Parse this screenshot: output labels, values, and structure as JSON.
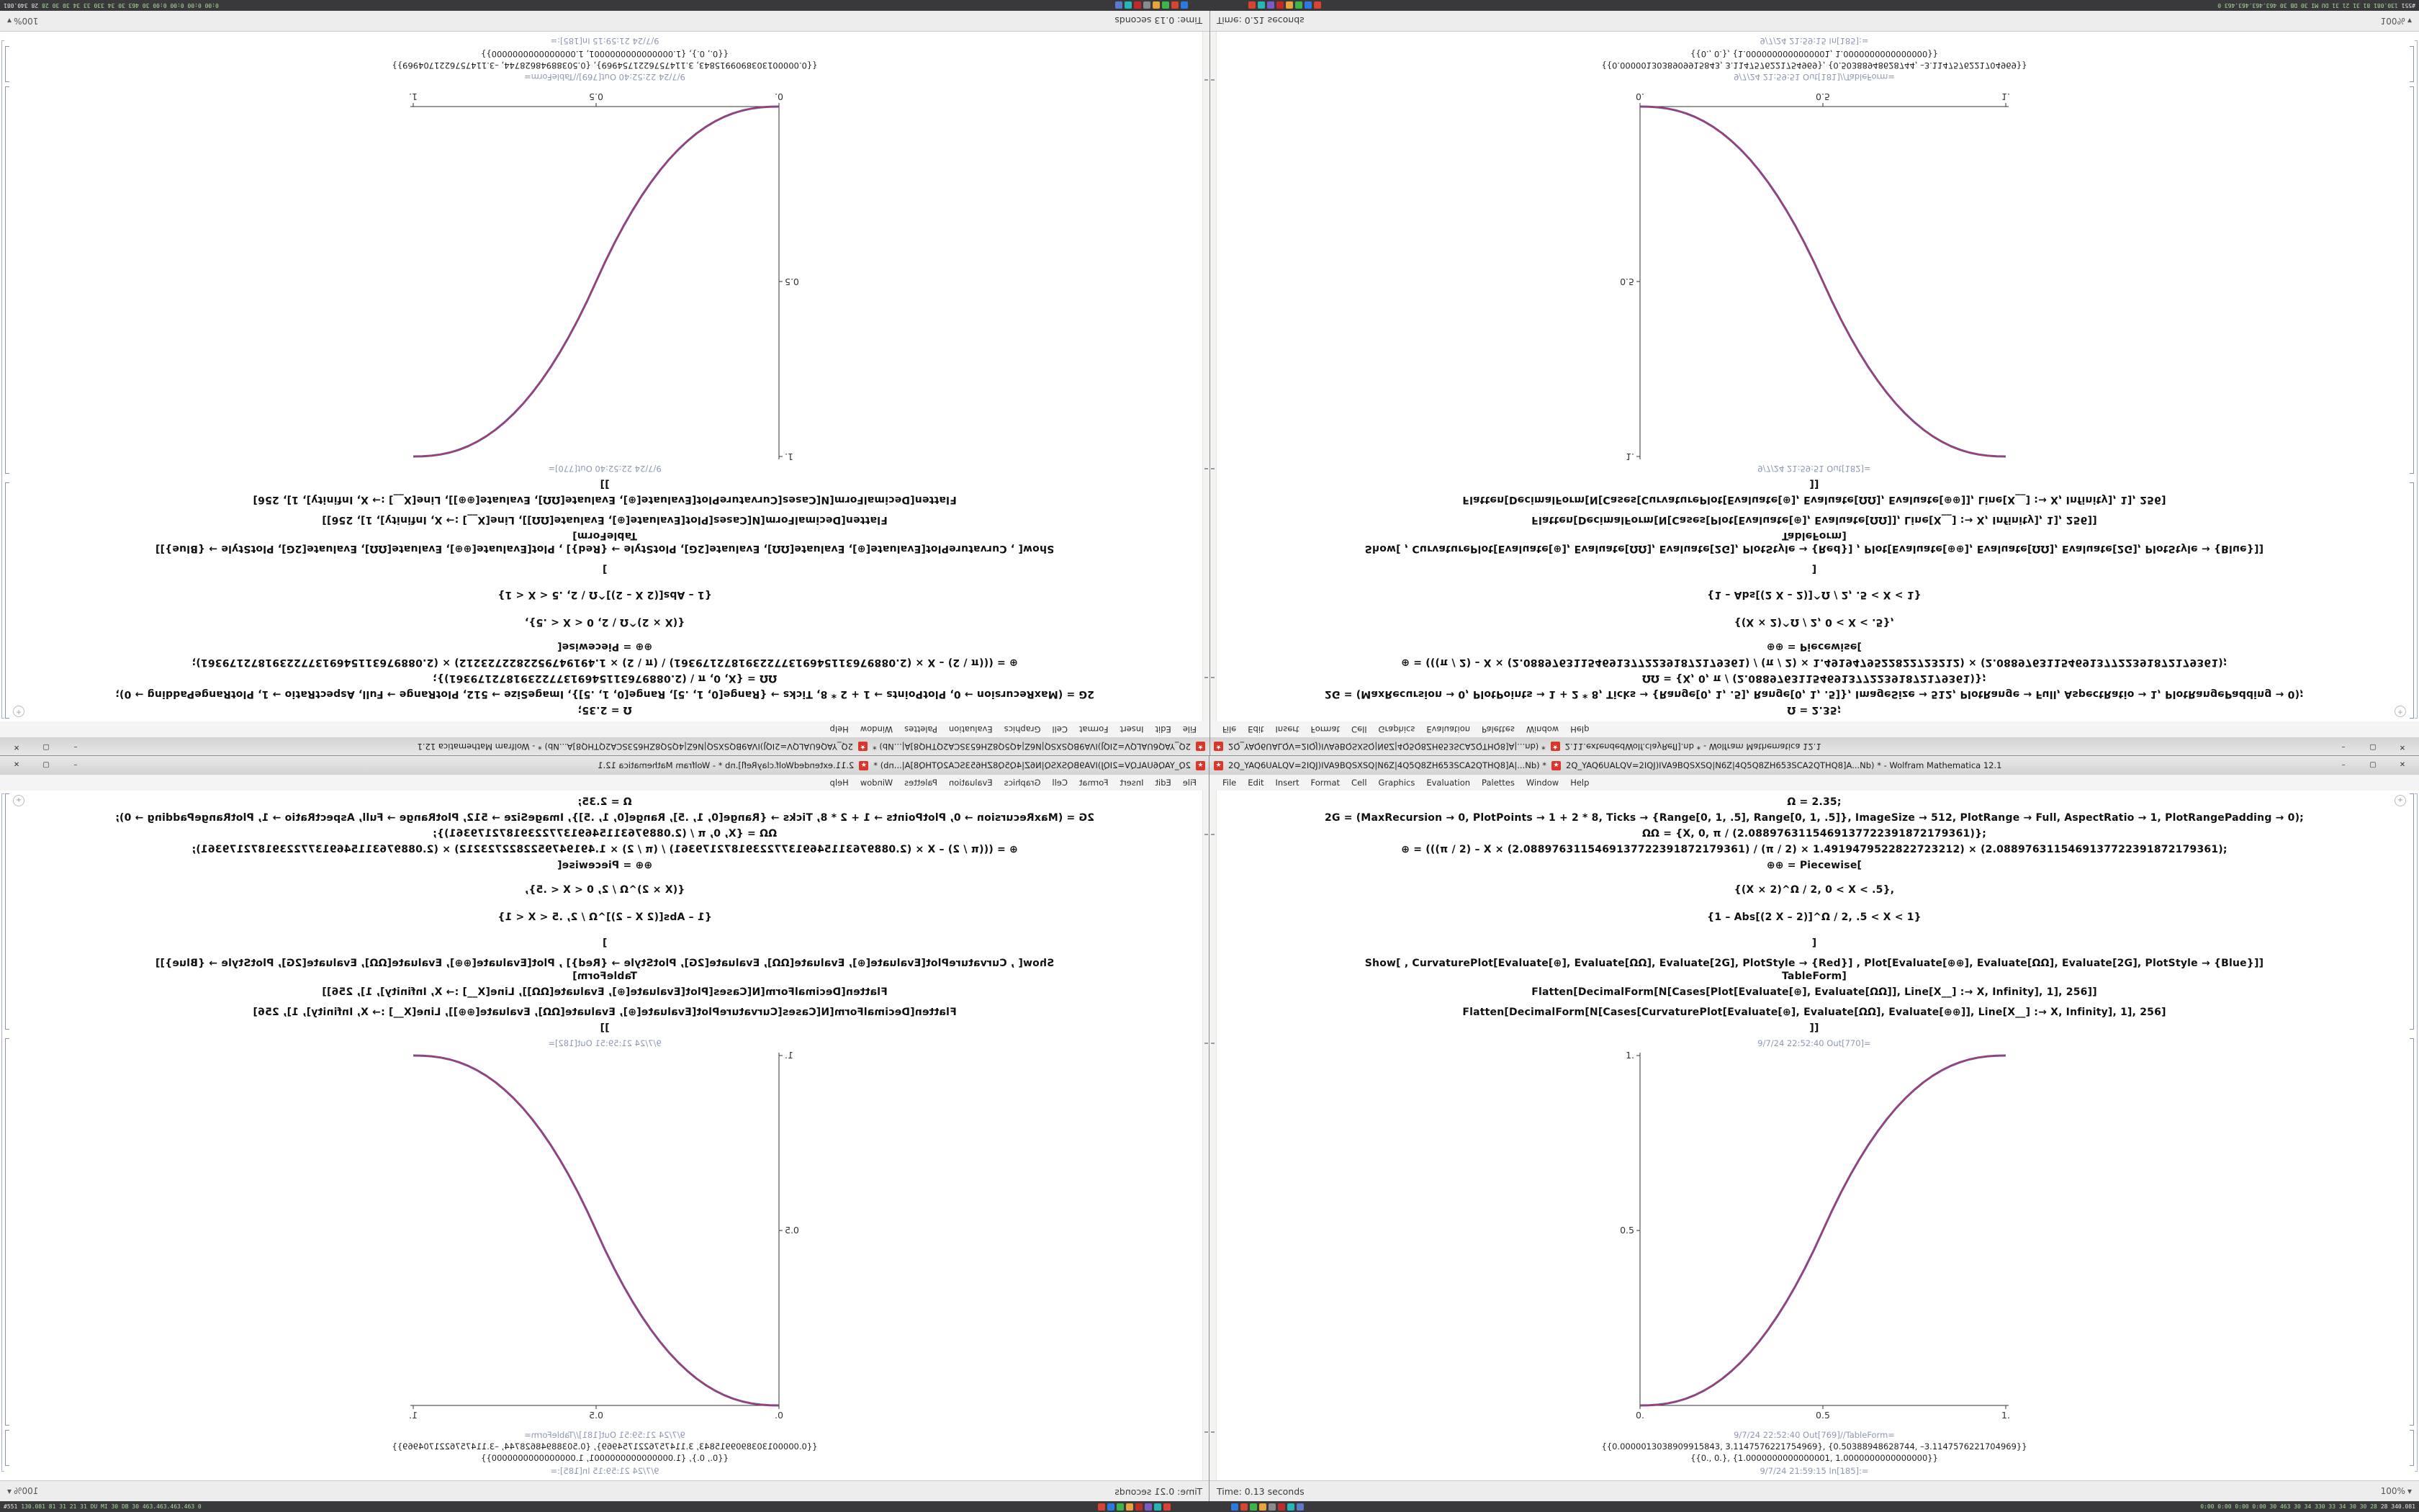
{
  "menu": {
    "items": [
      "File",
      "Edit",
      "Insert",
      "Format",
      "Cell",
      "Graphics",
      "Evaluation",
      "Palettes",
      "Window",
      "Help"
    ]
  },
  "notebook": {
    "code": [
      "Ω = 2.35;",
      "2G = (MaxRecursion → 0, PlotPoints → 1 + 2 * 8, Ticks → {Range[0, 1, .5], Range[0, 1, .5]}, ImageSize → 512, PlotRange → Full, AspectRatio → 1, PlotRangePadding → 0);",
      "ΩΩ = {X, 0, π / (2.0889763115469137722391872179361)};",
      "⊕ = (((π / 2) – X × (2.0889763115469137722391872179361) / (π / 2) × 1.4919479522822723212) × (2.0889763115469137722391872179361);",
      "⊕⊕ = Piecewise[",
      "{(X × 2)^Ω / 2, 0 < X < .5},",
      "{1 – Abs[(2 X – 2)]^Ω / 2, .5 < X < 1}",
      "]",
      "Show[ , CurvaturePlot[Evaluate[⊕], Evaluate[ΩΩ], Evaluate[2G], PlotStyle → {Red}]  , Plot[Evaluate[⊕⊕], Evaluate[ΩΩ], Evaluate[2G], PlotStyle → {Blue}]]",
      "TableForm]",
      "Flatten[DecimalForm[N[Cases[Plot[Evaluate[⊕], Evaluate[ΩΩ]], Line[X__] :→ X, Infinity], 1], 256]]",
      "Flatten[DecimalForm[N[Cases[CurvaturePlot[Evaluate[⊕], Evaluate[ΩΩ], Evaluate[⊕⊕]], Line[X__] :→ X, Infinity], 1], 256]",
      "]]"
    ],
    "table_rows": [
      "{{0.0000013038909915843, 3.1147576221754969}, {0.50388948628744, –3.1147576221704969}}",
      "{{0., 0.}, {1.0000000000000001, 1.0000000000000000}}"
    ],
    "corner_icon": "+",
    "spikey_glyph": "★"
  },
  "window_a": {
    "title_left": "2Q_YAQ6UALQV=2IQJ)IVA9BQSXSQ|N6Z|4Q5Q8ZH653SCA2QTHQ8]A|...Nb) *",
    "title_right": "2Q_YAQ6UALQV=2IQJ)IVA9BQSXSQ|N6Z|4Q5Q8ZH653SCA2QTHQ8]A...Nb) * - Wolfram Mathematica 12.1",
    "out_plot_label": "9/7/24 22:52:40 Out[770]=",
    "out_table_label": "9/7/24 22:52:40 Out[769]//TableForm=",
    "in_label_bottom": "9/7/24 21:59:15 In[185]:=",
    "status_time": "Time: 0.13 seconds",
    "zoom": "100%"
  },
  "window_b": {
    "title_left": "2Q_YAQ6UALQV=2IQJ)IVA9BQSXSQ|N6Z|4Q5Q8ZH653SCA2QTHQ8]A|...nb) *",
    "title_right": "2.11.extendedWolf.clayRefl].nb * - Wolfram Mathematica 12.1",
    "out_plot_label": "9/7/24 21:59:51 Out[182]=",
    "out_table_label": "9/7/24 21:59:51 Out[181]//TableForm=",
    "in_label_bottom": "9/7/24 21:59:15 In[185]:=",
    "status_time": "Time: 0.21 seconds",
    "zoom": "100%"
  },
  "window_controls": {
    "minimize": "–",
    "maximize": "▢",
    "close": "✕"
  },
  "taskbar": {
    "left_corner": "#551",
    "left_text": "130.081 81 31 21 31 DU MI 30 DB 30 463.463.463.463 0",
    "left_icons": [
      "#d84334",
      "#2a7ae2",
      "#3db54a",
      "#e8a33d",
      "#c22a2a",
      "#7a5cc9",
      "#2ab5b5",
      "#d84334"
    ],
    "right_icons": [
      "#2a7ae2",
      "#d84334",
      "#3db54a",
      "#e8a33d",
      "#8a8a8a",
      "#c22a2a",
      "#2ab5b5",
      "#5a7ad2"
    ],
    "right_text": "0:00 0:00 0:00 0:00  30 463 30  34 330 33  34 30 30 28",
    "right_corner": "28 340.081"
  },
  "chart_data": [
    {
      "type": "line",
      "window": "right notebook, cell Out[770] (also shown rotated 180° in top-left quadrant)",
      "title": "",
      "xlabel": "",
      "ylabel": "",
      "x_range": [
        0,
        1
      ],
      "y_range": [
        0,
        1
      ],
      "xtick_values": [
        0,
        0.5,
        1
      ],
      "xtick_labels": [
        "0.",
        "0.5",
        "1."
      ],
      "ytick_values": [
        0.5,
        1
      ],
      "ytick_labels": [
        "0.5",
        "1."
      ],
      "grid": false,
      "legend": false,
      "formula": "y = ((2x)^2.35)/2 for 0<x<=0.5 ; y = 1-((2-2x)^2.35)/2 for 0.5<x<1 (Ω = 2.35), Red CurvaturePlot and Blue Plot overlap",
      "series": [
        {
          "name": "CurvaturePlot (Red)",
          "color": "#d23333"
        },
        {
          "name": "Plot (Blue)",
          "color": "#3a46c8"
        }
      ],
      "x": [
        0,
        0.025,
        0.05,
        0.075,
        0.1,
        0.125,
        0.15,
        0.175,
        0.2,
        0.225,
        0.25,
        0.275,
        0.3,
        0.325,
        0.35,
        0.375,
        0.4,
        0.425,
        0.45,
        0.475,
        0.5,
        0.525,
        0.55,
        0.575,
        0.6,
        0.625,
        0.65,
        0.675,
        0.7,
        0.725,
        0.75,
        0.775,
        0.8,
        0.825,
        0.85,
        0.875,
        0.9,
        0.925,
        0.95,
        0.975,
        1
      ],
      "y": [
        0,
        0.0004,
        0.0022,
        0.0058,
        0.0114,
        0.0192,
        0.0295,
        0.0424,
        0.058,
        0.0766,
        0.0981,
        0.1227,
        0.1505,
        0.1817,
        0.2163,
        0.2544,
        0.296,
        0.3413,
        0.3903,
        0.4432,
        0.5,
        0.5568,
        0.6097,
        0.6587,
        0.704,
        0.7456,
        0.7837,
        0.8183,
        0.8495,
        0.8773,
        0.9019,
        0.9234,
        0.942,
        0.9576,
        0.9705,
        0.9808,
        0.9886,
        0.9942,
        0.9978,
        0.9996,
        1
      ],
      "note": "left notebook Out[182] shows the identical curve rendered horizontally mirrored; top quadrants are 180° rotations"
    }
  ]
}
